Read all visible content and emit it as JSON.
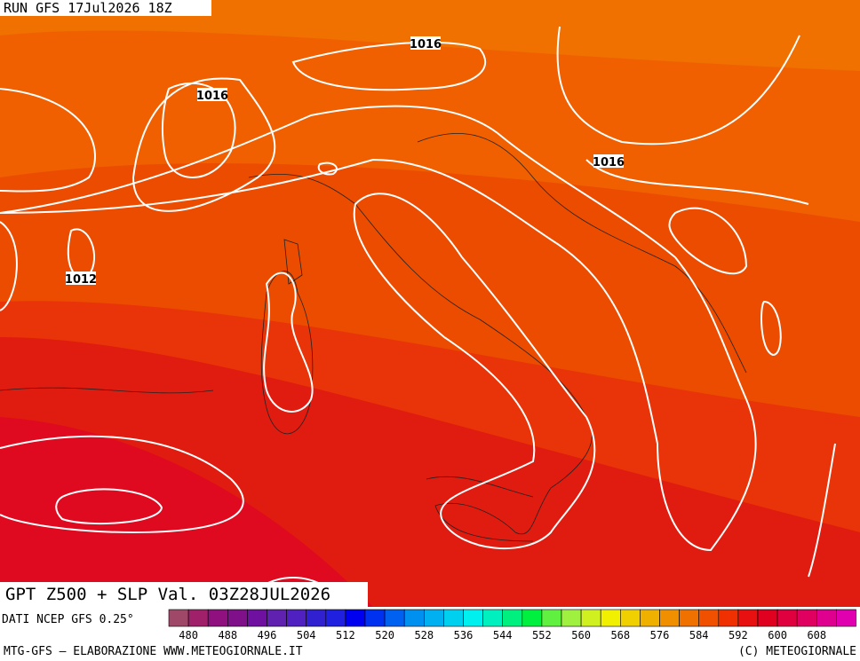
{
  "header": {
    "run": "RUN  GFS  17Jul2026  18Z"
  },
  "isobar_labels": [
    "1016",
    "1016",
    "1016",
    "1012"
  ],
  "footer": {
    "title": "GPT Z500 + SLP Val. 03Z28JUL2026",
    "source": "DATI NCEP GFS 0.25°",
    "credits": "MTG-GFS – ELABORAZIONE WWW.METEOGIORNALE.IT",
    "copyright": "(C) METEOGIORNALE"
  },
  "colorbar": {
    "colors": [
      "#a04868",
      "#a0206a",
      "#901080",
      "#80108a",
      "#7010a0",
      "#6020b0",
      "#5020c0",
      "#3020d0",
      "#2020e0",
      "#0000f0",
      "#0030f0",
      "#0060f0",
      "#0090f0",
      "#00b0f0",
      "#00d0f0",
      "#00f0f0",
      "#00f0c0",
      "#00f080",
      "#00f040",
      "#60f040",
      "#a0f040",
      "#d0f020",
      "#f0f000",
      "#f0d000",
      "#f0b000",
      "#f09000",
      "#f07000",
      "#f05000",
      "#f03000",
      "#e81010",
      "#e00020",
      "#e00040",
      "#e00060",
      "#e00090",
      "#e000b0"
    ],
    "labels": [
      480,
      488,
      496,
      504,
      512,
      520,
      528,
      536,
      544,
      552,
      560,
      568,
      576,
      584,
      592,
      600,
      608
    ]
  }
}
